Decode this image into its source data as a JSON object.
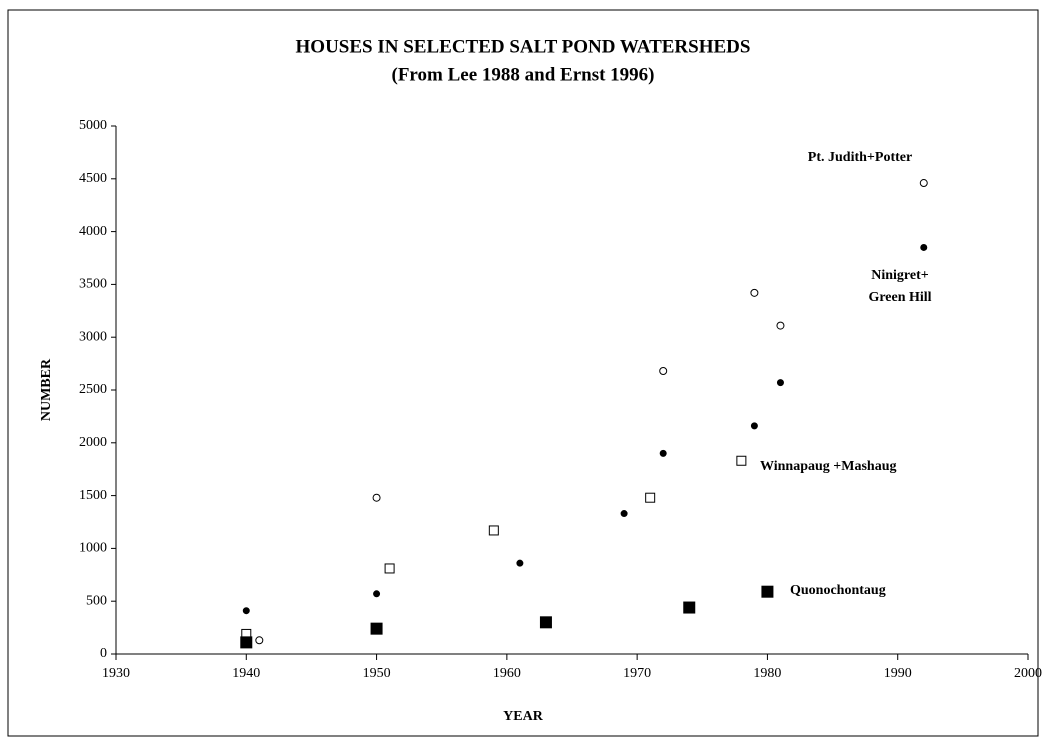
{
  "chart_data": {
    "type": "scatter",
    "title": "HOUSES IN SELECTED SALT POND WATERSHEDS",
    "subtitle": "(From Lee 1988 and Ernst 1996)",
    "x_label": "YEAR",
    "y_label": "NUMBER",
    "xlim": [
      1930,
      2000
    ],
    "xticks": [
      1930,
      1940,
      1950,
      1960,
      1970,
      1980,
      1990,
      2000
    ],
    "ylim": [
      0,
      5000
    ],
    "yticks": [
      0,
      500,
      1000,
      1500,
      2000,
      2500,
      3000,
      3500,
      4000,
      4500,
      5000
    ],
    "series": [
      {
        "name": "Pt. Judith+Potter",
        "marker": "open-circle",
        "color": "#000000",
        "x": [
          1941,
          1950,
          1972,
          1979,
          1981,
          1992
        ],
        "values": [
          130,
          1480,
          2680,
          3420,
          3110,
          4460
        ]
      },
      {
        "name": "Ninigret+ Green Hill",
        "marker": "filled-circle",
        "color": "#000000",
        "x": [
          1940,
          1950,
          1961,
          1969,
          1972,
          1979,
          1981,
          1992
        ],
        "values": [
          410,
          570,
          860,
          1330,
          1900,
          2160,
          2570,
          3850
        ]
      },
      {
        "name": "Winnapaug +Mashaug",
        "marker": "open-square",
        "color": "#000000",
        "x": [
          1940,
          1951,
          1959,
          1971,
          1978
        ],
        "values": [
          190,
          810,
          1170,
          1480,
          1830
        ]
      },
      {
        "name": "Quonochontaug",
        "marker": "filled-square",
        "color": "#000000",
        "x": [
          1940,
          1950,
          1963,
          1974,
          1980
        ],
        "values": [
          110,
          240,
          300,
          440,
          590
        ]
      }
    ]
  }
}
